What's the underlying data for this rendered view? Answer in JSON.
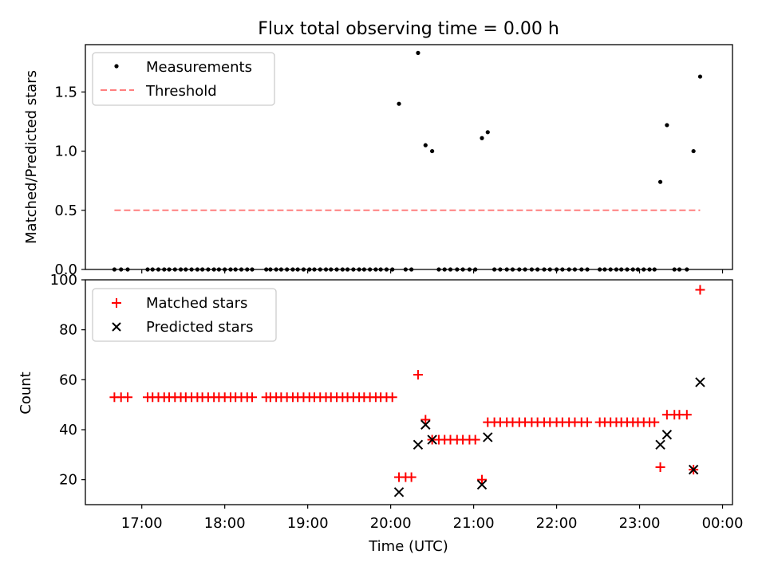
{
  "chart_data": [
    {
      "type": "scatter",
      "title": "Flux total observing time = 0.00 h",
      "xlabel": "",
      "ylabel": "Matched/Predicted stars",
      "xlim_hours": [
        16.32,
        24.12
      ],
      "ylim": [
        0,
        1.9
      ],
      "yticks": [
        0.0,
        0.5,
        1.0,
        1.5
      ],
      "ytick_labels": [
        "0.0",
        "0.5",
        "1.0",
        "1.5"
      ],
      "legend": {
        "position": "top-left",
        "entries": [
          {
            "label": "Measurements",
            "marker": "dot",
            "color": "#000000"
          },
          {
            "label": "Threshold",
            "marker": "dashed-line",
            "color": "#ff7f7f"
          }
        ]
      },
      "threshold": {
        "name": "Threshold",
        "x_range_hours": [
          16.67,
          23.73
        ],
        "y": 0.5,
        "color": "#ff7f7f",
        "style": "dashed"
      },
      "series": [
        {
          "name": "Measurements",
          "color": "#000000",
          "points": [
            [
              16.67,
              0
            ],
            [
              16.75,
              0
            ],
            [
              16.83,
              0
            ],
            [
              17.07,
              0
            ],
            [
              17.13,
              0
            ],
            [
              17.2,
              0
            ],
            [
              17.27,
              0
            ],
            [
              17.33,
              0
            ],
            [
              17.4,
              0
            ],
            [
              17.47,
              0
            ],
            [
              17.53,
              0
            ],
            [
              17.6,
              0
            ],
            [
              17.67,
              0
            ],
            [
              17.73,
              0
            ],
            [
              17.8,
              0
            ],
            [
              17.87,
              0
            ],
            [
              17.93,
              0
            ],
            [
              18.0,
              0
            ],
            [
              18.07,
              0
            ],
            [
              18.13,
              0
            ],
            [
              18.2,
              0
            ],
            [
              18.27,
              0
            ],
            [
              18.33,
              0
            ],
            [
              18.5,
              0
            ],
            [
              18.55,
              0
            ],
            [
              18.62,
              0
            ],
            [
              18.68,
              0
            ],
            [
              18.75,
              0
            ],
            [
              18.82,
              0
            ],
            [
              18.88,
              0
            ],
            [
              18.95,
              0
            ],
            [
              19.02,
              0
            ],
            [
              19.08,
              0
            ],
            [
              19.15,
              0
            ],
            [
              19.22,
              0
            ],
            [
              19.28,
              0
            ],
            [
              19.35,
              0
            ],
            [
              19.42,
              0
            ],
            [
              19.48,
              0
            ],
            [
              19.55,
              0
            ],
            [
              19.62,
              0
            ],
            [
              19.68,
              0
            ],
            [
              19.75,
              0
            ],
            [
              19.82,
              0
            ],
            [
              19.88,
              0
            ],
            [
              19.95,
              0
            ],
            [
              20.02,
              0
            ],
            [
              20.1,
              1.4
            ],
            [
              20.18,
              0
            ],
            [
              20.25,
              0
            ],
            [
              20.33,
              1.83
            ],
            [
              20.42,
              1.05
            ],
            [
              20.5,
              1.0
            ],
            [
              20.58,
              0
            ],
            [
              20.65,
              0
            ],
            [
              20.72,
              0
            ],
            [
              20.8,
              0
            ],
            [
              20.87,
              0
            ],
            [
              20.95,
              0
            ],
            [
              21.02,
              0
            ],
            [
              21.1,
              1.11
            ],
            [
              21.17,
              1.16
            ],
            [
              21.25,
              0
            ],
            [
              21.32,
              0
            ],
            [
              21.4,
              0
            ],
            [
              21.47,
              0
            ],
            [
              21.55,
              0
            ],
            [
              21.62,
              0
            ],
            [
              21.7,
              0
            ],
            [
              21.77,
              0
            ],
            [
              21.85,
              0
            ],
            [
              21.92,
              0
            ],
            [
              22.0,
              0
            ],
            [
              22.07,
              0
            ],
            [
              22.15,
              0
            ],
            [
              22.22,
              0
            ],
            [
              22.3,
              0
            ],
            [
              22.37,
              0
            ],
            [
              22.52,
              0
            ],
            [
              22.58,
              0
            ],
            [
              22.65,
              0
            ],
            [
              22.72,
              0
            ],
            [
              22.78,
              0
            ],
            [
              22.85,
              0
            ],
            [
              22.92,
              0
            ],
            [
              22.98,
              0
            ],
            [
              23.05,
              0
            ],
            [
              23.12,
              0
            ],
            [
              23.18,
              0
            ],
            [
              23.25,
              0.74
            ],
            [
              23.33,
              1.22
            ],
            [
              23.42,
              0
            ],
            [
              23.48,
              0
            ],
            [
              23.57,
              0
            ],
            [
              23.65,
              1.0
            ],
            [
              23.73,
              1.63
            ]
          ]
        }
      ]
    },
    {
      "type": "scatter",
      "title": "",
      "xlabel": "Time (UTC)",
      "ylabel": "Count",
      "xlim_hours": [
        16.32,
        24.12
      ],
      "ylim": [
        10,
        100
      ],
      "yticks": [
        20,
        40,
        60,
        80,
        100
      ],
      "ytick_labels": [
        "20",
        "40",
        "60",
        "80",
        "100"
      ],
      "xticks_hours": [
        17,
        18,
        19,
        20,
        21,
        22,
        23,
        24
      ],
      "xtick_labels": [
        "17:00",
        "18:00",
        "19:00",
        "20:00",
        "21:00",
        "22:00",
        "23:00",
        "00:00"
      ],
      "legend": {
        "position": "top-left",
        "entries": [
          {
            "label": "Matched stars",
            "marker": "plus",
            "color": "#ff0000"
          },
          {
            "label": "Predicted stars",
            "marker": "x",
            "color": "#000000"
          }
        ]
      },
      "series": [
        {
          "name": "Matched stars",
          "marker": "plus",
          "color": "#ff0000",
          "points": [
            [
              16.67,
              53
            ],
            [
              16.75,
              53
            ],
            [
              16.83,
              53
            ],
            [
              17.07,
              53
            ],
            [
              17.13,
              53
            ],
            [
              17.2,
              53
            ],
            [
              17.27,
              53
            ],
            [
              17.33,
              53
            ],
            [
              17.4,
              53
            ],
            [
              17.47,
              53
            ],
            [
              17.53,
              53
            ],
            [
              17.6,
              53
            ],
            [
              17.67,
              53
            ],
            [
              17.73,
              53
            ],
            [
              17.8,
              53
            ],
            [
              17.87,
              53
            ],
            [
              17.93,
              53
            ],
            [
              18.0,
              53
            ],
            [
              18.07,
              53
            ],
            [
              18.13,
              53
            ],
            [
              18.2,
              53
            ],
            [
              18.27,
              53
            ],
            [
              18.33,
              53
            ],
            [
              18.5,
              53
            ],
            [
              18.55,
              53
            ],
            [
              18.62,
              53
            ],
            [
              18.68,
              53
            ],
            [
              18.75,
              53
            ],
            [
              18.82,
              53
            ],
            [
              18.88,
              53
            ],
            [
              18.95,
              53
            ],
            [
              19.02,
              53
            ],
            [
              19.08,
              53
            ],
            [
              19.15,
              53
            ],
            [
              19.22,
              53
            ],
            [
              19.28,
              53
            ],
            [
              19.35,
              53
            ],
            [
              19.42,
              53
            ],
            [
              19.48,
              53
            ],
            [
              19.55,
              53
            ],
            [
              19.62,
              53
            ],
            [
              19.68,
              53
            ],
            [
              19.75,
              53
            ],
            [
              19.82,
              53
            ],
            [
              19.88,
              53
            ],
            [
              19.95,
              53
            ],
            [
              20.02,
              53
            ],
            [
              20.1,
              21
            ],
            [
              20.18,
              21
            ],
            [
              20.25,
              21
            ],
            [
              20.33,
              62
            ],
            [
              20.42,
              44
            ],
            [
              20.5,
              36
            ],
            [
              20.58,
              36
            ],
            [
              20.65,
              36
            ],
            [
              20.72,
              36
            ],
            [
              20.8,
              36
            ],
            [
              20.87,
              36
            ],
            [
              20.95,
              36
            ],
            [
              21.02,
              36
            ],
            [
              21.1,
              20
            ],
            [
              21.17,
              43
            ],
            [
              21.25,
              43
            ],
            [
              21.32,
              43
            ],
            [
              21.4,
              43
            ],
            [
              21.47,
              43
            ],
            [
              21.55,
              43
            ],
            [
              21.62,
              43
            ],
            [
              21.7,
              43
            ],
            [
              21.77,
              43
            ],
            [
              21.85,
              43
            ],
            [
              21.92,
              43
            ],
            [
              22.0,
              43
            ],
            [
              22.07,
              43
            ],
            [
              22.15,
              43
            ],
            [
              22.22,
              43
            ],
            [
              22.3,
              43
            ],
            [
              22.37,
              43
            ],
            [
              22.52,
              43
            ],
            [
              22.58,
              43
            ],
            [
              22.65,
              43
            ],
            [
              22.72,
              43
            ],
            [
              22.78,
              43
            ],
            [
              22.85,
              43
            ],
            [
              22.92,
              43
            ],
            [
              22.98,
              43
            ],
            [
              23.05,
              43
            ],
            [
              23.12,
              43
            ],
            [
              23.18,
              43
            ],
            [
              23.25,
              25
            ],
            [
              23.33,
              46
            ],
            [
              23.42,
              46
            ],
            [
              23.48,
              46
            ],
            [
              23.57,
              46
            ],
            [
              23.65,
              24
            ],
            [
              23.73,
              96
            ]
          ]
        },
        {
          "name": "Predicted stars",
          "marker": "x",
          "color": "#000000",
          "points": [
            [
              20.1,
              15
            ],
            [
              20.33,
              34
            ],
            [
              20.42,
              42
            ],
            [
              20.5,
              36
            ],
            [
              21.1,
              18
            ],
            [
              21.17,
              37
            ],
            [
              23.25,
              34
            ],
            [
              23.33,
              38
            ],
            [
              23.65,
              24
            ],
            [
              23.73,
              59
            ]
          ]
        }
      ]
    }
  ]
}
